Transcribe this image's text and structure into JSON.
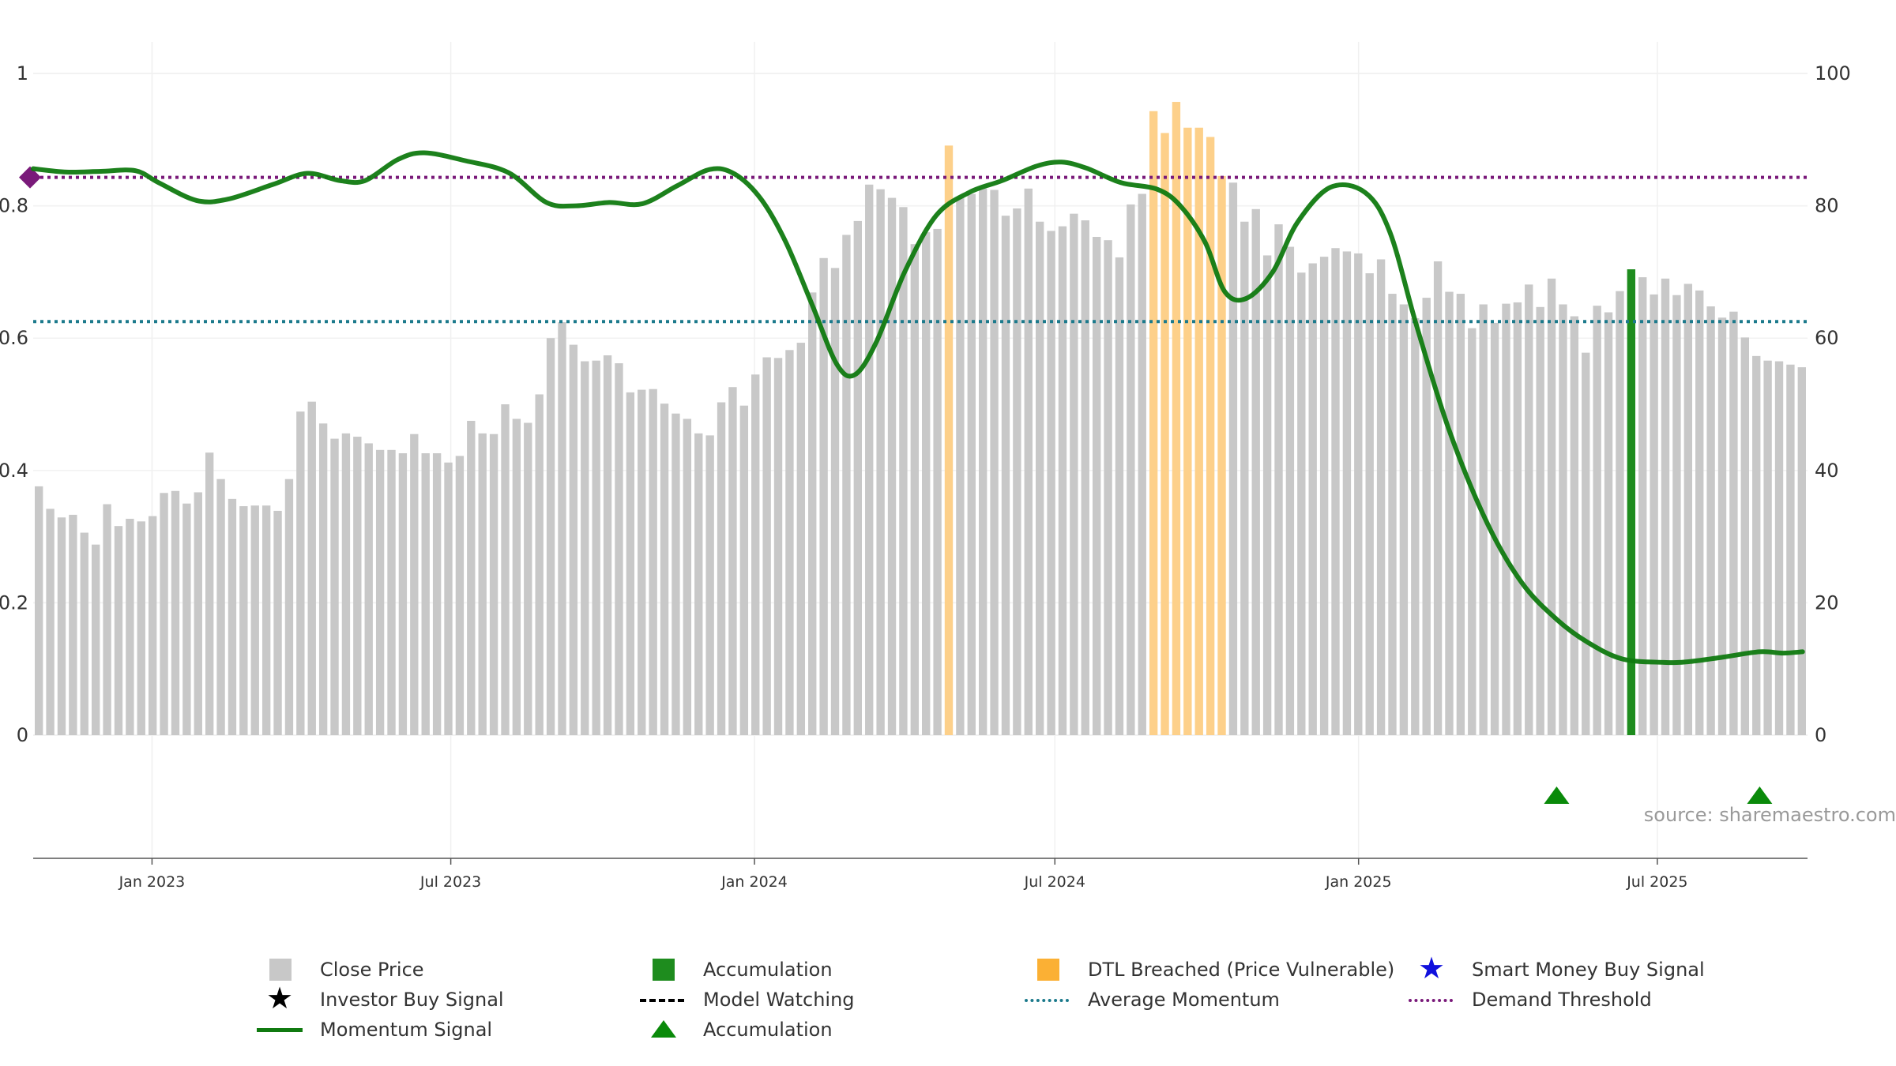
{
  "source_text": "source: sharemaestro.com",
  "colors": {
    "close_price": "#c8c8c8",
    "accumulation": "#1e8c1e",
    "dtl_breached": "#fdd08a",
    "momentum": "#107a10",
    "average_momentum": "#1c7a8c",
    "demand_threshold": "#7a1a7a",
    "triangle": "#0a8a0a",
    "smart_money": "#1010dd"
  },
  "legend": [
    {
      "label": "Close Price",
      "symbol": "gray-square"
    },
    {
      "label": "Accumulation",
      "symbol": "green-square"
    },
    {
      "label": "DTL Breached (Price Vulnerable)",
      "symbol": "orange-square"
    },
    {
      "label": "Smart Money Buy Signal",
      "symbol": "blue-star"
    },
    {
      "label": "Investor Buy Signal",
      "symbol": "black-star"
    },
    {
      "label": "Model Watching",
      "symbol": "black-dash"
    },
    {
      "label": "Average Momentum",
      "symbol": "teal-dot-line"
    },
    {
      "label": "Demand Threshold",
      "symbol": "purple-dot-line"
    },
    {
      "label": "Momentum Signal",
      "symbol": "green-line"
    },
    {
      "label": "Accumulation",
      "symbol": "green-triangle"
    }
  ],
  "chart_data": {
    "type": "bar",
    "x_axis": {
      "start": "2022-10-21",
      "end": "2025-09-30",
      "ticks": [
        {
          "date": "2023-01-01",
          "label": "Jan 2023"
        },
        {
          "date": "2023-07-01",
          "label": "Jul 2023"
        },
        {
          "date": "2024-01-01",
          "label": "Jan 2024"
        },
        {
          "date": "2024-07-01",
          "label": "Jul 2024"
        },
        {
          "date": "2025-01-01",
          "label": "Jan 2025"
        },
        {
          "date": "2025-07-01",
          "label": "Jul 2025"
        }
      ]
    },
    "y_left": {
      "min": 0,
      "max": 1,
      "ticks": [
        0,
        0.2,
        0.4,
        0.6,
        0.8,
        1
      ]
    },
    "y_right": {
      "min": 0,
      "max": 100,
      "ticks": [
        0,
        20,
        40,
        60,
        80,
        100
      ]
    },
    "close_price": [
      37.6,
      34.2,
      32.9,
      33.3,
      30.6,
      28.8,
      34.9,
      31.6,
      32.7,
      32.3,
      33.1,
      36.6,
      36.9,
      35.0,
      36.7,
      42.7,
      38.7,
      35.7,
      34.6,
      34.7,
      34.7,
      33.9,
      38.7,
      48.9,
      50.4,
      47.1,
      44.8,
      45.6,
      45.1,
      44.1,
      43.1,
      43.1,
      42.6,
      45.5,
      42.6,
      42.6,
      41.2,
      42.2,
      47.5,
      45.6,
      45.5,
      50.0,
      47.8,
      47.2,
      51.5,
      60.0,
      62.4,
      59.0,
      56.5,
      56.6,
      57.4,
      56.2,
      51.8,
      52.2,
      52.3,
      50.1,
      48.6,
      47.8,
      45.6,
      45.3,
      50.3,
      52.6,
      49.8,
      54.5,
      57.1,
      57.0,
      58.2,
      59.3,
      66.9,
      72.1,
      70.6,
      75.6,
      77.7,
      83.2,
      82.5,
      81.2,
      79.8,
      74.2,
      76.0,
      76.5,
      89.1,
      81.2,
      81.8,
      82.6,
      82.4,
      78.5,
      79.6,
      82.6,
      77.6,
      76.2,
      76.9,
      78.8,
      77.8,
      75.3,
      74.8,
      72.2,
      80.2,
      81.8,
      94.3,
      91.0,
      95.7,
      91.8,
      91.8,
      90.4,
      84.5,
      83.5,
      77.6,
      79.5,
      72.5,
      77.2,
      73.8,
      69.9,
      71.3,
      72.3,
      73.6,
      73.1,
      72.8,
      69.8,
      71.9,
      66.7,
      65.1,
      63.0,
      66.1,
      71.6,
      67.0,
      66.7,
      61.5,
      65.1,
      62.3,
      65.2,
      65.4,
      68.1,
      64.7,
      69.0,
      65.1,
      63.3,
      57.8,
      64.9,
      63.9,
      67.1,
      70.4,
      69.2,
      66.6,
      69.0,
      66.5,
      68.2,
      67.2,
      64.8,
      63.1,
      64.0,
      60.1,
      57.3,
      56.6,
      56.5,
      56.0,
      55.6
    ],
    "bar_states": {
      "dtl_breached_indices": [
        80,
        98,
        99,
        100,
        101,
        102,
        103,
        104
      ],
      "accumulation_indices": [
        140,
        158
      ]
    },
    "momentum": [
      [
        "2022-10-21",
        0.856
      ],
      [
        "2022-11-10",
        0.851
      ],
      [
        "2022-12-01",
        0.852
      ],
      [
        "2022-12-22",
        0.853
      ],
      [
        "2023-01-05",
        0.835
      ],
      [
        "2023-01-28",
        0.808
      ],
      [
        "2023-02-16",
        0.81
      ],
      [
        "2023-03-15",
        0.832
      ],
      [
        "2023-04-05",
        0.849
      ],
      [
        "2023-04-25",
        0.838
      ],
      [
        "2023-05-10",
        0.838
      ],
      [
        "2023-05-30",
        0.87
      ],
      [
        "2023-06-15",
        0.88
      ],
      [
        "2023-07-10",
        0.868
      ],
      [
        "2023-08-05",
        0.85
      ],
      [
        "2023-08-28",
        0.805
      ],
      [
        "2023-09-15",
        0.8
      ],
      [
        "2023-10-05",
        0.805
      ],
      [
        "2023-10-25",
        0.803
      ],
      [
        "2023-11-15",
        0.83
      ],
      [
        "2023-12-05",
        0.855
      ],
      [
        "2023-12-20",
        0.848
      ],
      [
        "2024-01-05",
        0.81
      ],
      [
        "2024-01-20",
        0.745
      ],
      [
        "2024-02-05",
        0.65
      ],
      [
        "2024-02-20",
        0.56
      ],
      [
        "2024-03-02",
        0.545
      ],
      [
        "2024-03-15",
        0.595
      ],
      [
        "2024-04-01",
        0.7
      ],
      [
        "2024-04-20",
        0.785
      ],
      [
        "2024-05-10",
        0.82
      ],
      [
        "2024-05-30",
        0.838
      ],
      [
        "2024-06-20",
        0.86
      ],
      [
        "2024-07-05",
        0.866
      ],
      [
        "2024-07-20",
        0.857
      ],
      [
        "2024-08-10",
        0.835
      ],
      [
        "2024-09-01",
        0.825
      ],
      [
        "2024-09-15",
        0.8
      ],
      [
        "2024-09-30",
        0.745
      ],
      [
        "2024-10-12",
        0.67
      ],
      [
        "2024-10-25",
        0.66
      ],
      [
        "2024-11-10",
        0.7
      ],
      [
        "2024-11-25",
        0.775
      ],
      [
        "2024-12-15",
        0.828
      ],
      [
        "2025-01-05",
        0.82
      ],
      [
        "2025-01-20",
        0.76
      ],
      [
        "2025-02-05",
        0.62
      ],
      [
        "2025-02-25",
        0.46
      ],
      [
        "2025-03-20",
        0.32
      ],
      [
        "2025-04-10",
        0.23
      ],
      [
        "2025-05-01",
        0.175
      ],
      [
        "2025-05-20",
        0.14
      ],
      [
        "2025-06-10",
        0.115
      ],
      [
        "2025-07-05",
        0.11
      ],
      [
        "2025-07-20",
        0.111
      ],
      [
        "2025-08-10",
        0.118
      ],
      [
        "2025-09-01",
        0.126
      ],
      [
        "2025-09-15",
        0.124
      ],
      [
        "2025-09-27",
        0.126
      ]
    ],
    "average_momentum": 0.625,
    "demand_threshold": 0.843,
    "accumulation_markers": [
      "2025-05-01",
      "2025-09-01"
    ]
  }
}
